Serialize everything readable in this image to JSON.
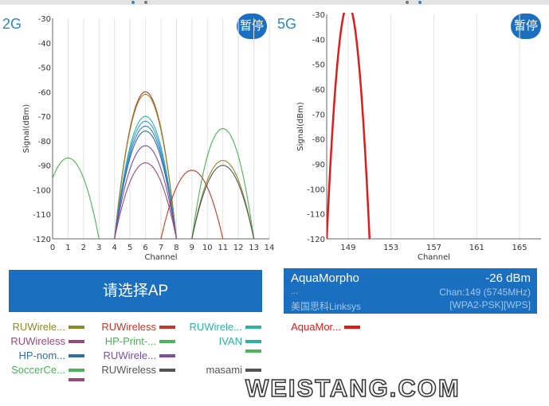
{
  "top_indicator": {
    "dots": [
      "#2f86c8",
      "#777777",
      "#777777",
      "#2f86c8"
    ]
  },
  "panel_2g": {
    "label": "2G",
    "pause_label": "暂停"
  },
  "panel_5g": {
    "label": "5G",
    "pause_label": "暂停"
  },
  "chart_data": [
    {
      "type": "line",
      "title": "",
      "xlabel": "Channel",
      "ylabel": "Signal(dBm)",
      "xlim": [
        0,
        14
      ],
      "ylim": [
        -120,
        -30
      ],
      "x_ticks": [
        0,
        1,
        2,
        3,
        4,
        5,
        6,
        7,
        8,
        9,
        10,
        11,
        12,
        13,
        14
      ],
      "y_ticks": [
        -120,
        -110,
        -100,
        -90,
        -80,
        -70,
        -60,
        -50,
        -40,
        -30
      ],
      "grid": "vertical",
      "series": [
        {
          "center": 1,
          "peak": -87,
          "color": "#4cb35a"
        },
        {
          "center": 6,
          "peak": -60,
          "color": "#c0392b"
        },
        {
          "center": 6,
          "peak": -61,
          "color": "#8a8a2a"
        },
        {
          "center": 6,
          "peak": -70,
          "color": "#2bb3a0"
        },
        {
          "center": 6,
          "peak": -72,
          "color": "#3f9de0"
        },
        {
          "center": 6,
          "peak": -74,
          "color": "#3b7fc4"
        },
        {
          "center": 6,
          "peak": -76,
          "color": "#2f6fa8"
        },
        {
          "center": 6,
          "peak": -82,
          "color": "#7b4ea3"
        },
        {
          "center": 6,
          "peak": -89,
          "color": "#9a4a7a"
        },
        {
          "center": 9,
          "peak": -92,
          "color": "#c0392b"
        },
        {
          "center": 11,
          "peak": -75,
          "color": "#4cb35a"
        },
        {
          "center": 11,
          "peak": -88,
          "color": "#8a8a2a"
        },
        {
          "center": 11,
          "peak": -90,
          "color": "#555555"
        }
      ]
    },
    {
      "type": "line",
      "title": "",
      "xlabel": "Channel",
      "ylabel": "Signal(dBm)",
      "xlim": [
        147,
        167
      ],
      "ylim": [
        -120,
        -30
      ],
      "x_ticks": [
        149,
        153,
        157,
        161,
        165
      ],
      "y_ticks": [
        -120,
        -110,
        -100,
        -90,
        -80,
        -70,
        -60,
        -50,
        -40,
        -30
      ],
      "grid": "vertical",
      "series": [
        {
          "name": "AquaMorpho",
          "center": 149,
          "peak": -26,
          "color": "#e01b1b"
        }
      ]
    }
  ],
  "select_ap_button": "请选择AP",
  "ap_info": {
    "name": "AquaMorpho",
    "signal": "-26 dBm",
    "dots": "...",
    "channel": "Chan:149 (5745MHz)",
    "vendor": "美国思科Linksys",
    "security": "[WPA2-PSK][WPS]"
  },
  "legend_2g": [
    {
      "label": "RUWirele...",
      "color": "#8a8a2a",
      "text_color": "#8a8a2a"
    },
    {
      "label": "RUWireless",
      "color": "#c0392b",
      "text_color": "#c0392b"
    },
    {
      "label": "RUWirele...",
      "color": "#2bb3a0",
      "text_color": "#2bb3a0"
    },
    {
      "label": "RUWireless",
      "color": "#9a4a7a",
      "text_color": "#9a4a7a"
    },
    {
      "label": "HP-Print-...",
      "color": "#4cb35a",
      "text_color": "#4cb35a"
    },
    {
      "label": "IVAN",
      "color": "#2bb3a0",
      "text_color": "#2bb3a0"
    },
    {
      "label": "HP-nom...",
      "color": "#2f6fa8",
      "text_color": "#2f6fa8"
    },
    {
      "label": "RUWirele...",
      "color": "#7b4ea3",
      "text_color": "#7b4ea3"
    },
    {
      "label": "",
      "color": "#4cb35a",
      "text_color": "#4cb35a"
    },
    {
      "label": "SoccerCe...",
      "color": "#4cb35a",
      "text_color": "#4cb35a"
    },
    {
      "label": "RUWireless",
      "color": "#555555",
      "text_color": "#555555"
    },
    {
      "label": "masami",
      "color": "#555555",
      "text_color": "#555555"
    },
    {
      "label": "",
      "color": "#9a4a7a",
      "text_color": "#9a4a7a"
    }
  ],
  "legend_5g": [
    {
      "label": "AquaMor...",
      "color": "#e01b1b",
      "text_color": "#e01b1b"
    }
  ],
  "watermark": "WEISTANG.COM"
}
